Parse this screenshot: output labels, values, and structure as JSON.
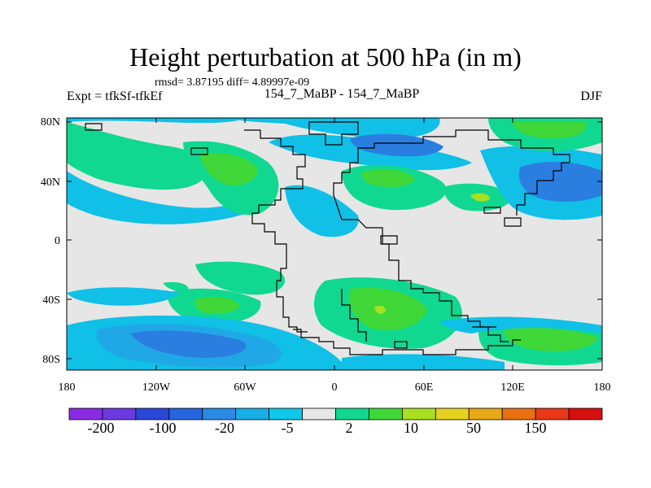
{
  "title": "Height perturbation at 500 hPa (in m)",
  "stats": "rmsd= 3.87195 diff= 4.89997e-09",
  "left_label": "Expt = tfkSf-tfkEf",
  "center_label": "154_7_MaBP - 154_7_MaBP",
  "right_label": "DJF",
  "lat_ticks": [
    "80N",
    "40N",
    "0",
    "40S",
    "80S"
  ],
  "lon_ticks": [
    "180",
    "120W",
    "60W",
    "0",
    "60E",
    "120E",
    "180"
  ],
  "colorbar": {
    "colors": [
      "#8a2be2",
      "#6a3ae0",
      "#2a48d8",
      "#2566e0",
      "#2a8ae6",
      "#18aee6",
      "#10c8e8",
      "#e6e6e6",
      "#10d890",
      "#40d838",
      "#a8e020",
      "#e6d020",
      "#e8a818",
      "#e87010",
      "#e83818",
      "#d81010"
    ],
    "labels": [
      "-200",
      "-100",
      "-20",
      "-5",
      "2",
      "10",
      "50",
      "150"
    ]
  },
  "map_colors": {
    "neutral": "#e6e6e6",
    "cyan": "#10c0e6",
    "blue_light": "#20a8e6",
    "blue": "#2a7ee0",
    "green": "#10d890",
    "green_dark": "#40d838",
    "yellow": "#a8e020"
  }
}
